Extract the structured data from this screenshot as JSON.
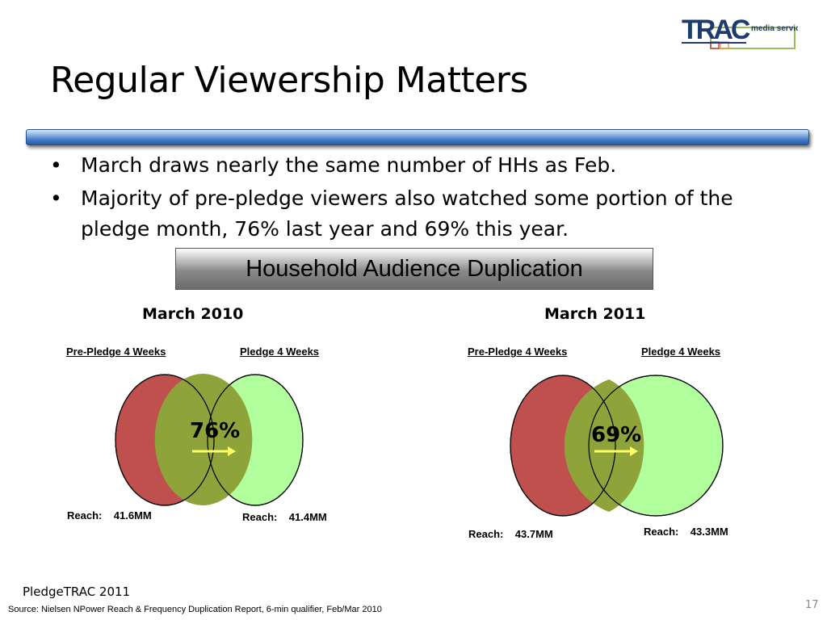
{
  "logo": {
    "name": "TRAC",
    "tagline": "media services"
  },
  "title": "Regular Viewership Matters",
  "bullets": [
    "March draws nearly the same number of HHs as Feb.",
    "Majority of pre-pledge viewers also watched some portion of the pledge month, 76% last year and 69% this year."
  ],
  "banner": "Household Audience Duplication",
  "diagrams": [
    {
      "year": "March 2010",
      "left_label": "Pre-Pledge 4 Weeks",
      "right_label": "Pledge 4 Weeks",
      "overlap_pct": "76%",
      "left_reach": "Reach:    41.6MM",
      "right_reach": "Reach:    41.4MM"
    },
    {
      "year": "March 2011",
      "left_label": "Pre-Pledge 4 Weeks",
      "right_label": "Pledge 4 Weeks",
      "overlap_pct": "69%",
      "left_reach": "Reach:    43.7MM",
      "right_reach": "Reach:    43.3MM"
    }
  ],
  "colors": {
    "pre_pledge": "#c0504d",
    "pledge": "#b2ff9e",
    "overlap": "#8ea33a",
    "arrow": "#ffff66"
  },
  "footer": "PledgeTRAC 2011",
  "source": "Source: Nielsen NPower Reach & Frequency Duplication Report, 6-min qualifier, Feb/Mar 2010",
  "page_number": "17"
}
